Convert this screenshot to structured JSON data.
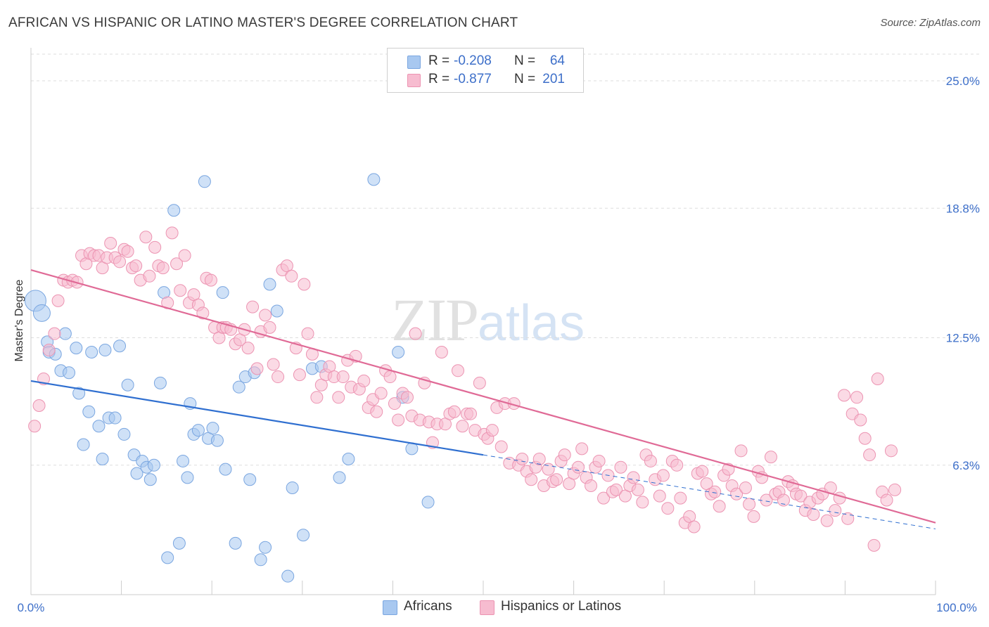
{
  "header": {
    "title": "AFRICAN VS HISPANIC OR LATINO MASTER'S DEGREE CORRELATION CHART",
    "source": "Source: ZipAtlas.com"
  },
  "watermark": {
    "zip": "ZIP",
    "atlas": "atlas"
  },
  "legend": {
    "rows": [
      {
        "r_label": "R =",
        "r_value": "-0.208",
        "n_label": "N =",
        "n_value": "64",
        "color": "#a8c8f0",
        "border": "#7aa6e0"
      },
      {
        "r_label": "R =",
        "r_value": "-0.877",
        "n_label": "N =",
        "n_value": "201",
        "color": "#f7bcd0",
        "border": "#ec94b2"
      }
    ]
  },
  "bottom_legend": [
    {
      "label": "Africans",
      "color": "#a8c8f0",
      "border": "#7aa6e0"
    },
    {
      "label": "Hispanics or Latinos",
      "color": "#f7bcd0",
      "border": "#ec94b2"
    }
  ],
  "chart_data": {
    "type": "scatter",
    "title": "AFRICAN VS HISPANIC OR LATINO MASTER'S DEGREE CORRELATION CHART",
    "xlabel": "",
    "ylabel": "Master's Degree",
    "xlim": [
      0,
      100
    ],
    "ylim": [
      0,
      26.3
    ],
    "x_tick_labels": [
      "0.0%",
      "100.0%"
    ],
    "y_ticks": [
      6.3,
      12.5,
      18.8,
      25.0
    ],
    "y_tick_labels": [
      "6.3%",
      "12.5%",
      "18.8%",
      "25.0%"
    ],
    "grid": "horizontal dashed",
    "legend_position": "top-center",
    "series": [
      {
        "name": "Africans",
        "color": "#a8c8f0",
        "stroke": "#7aa6e0",
        "line_color": "#2f6fd0",
        "trend": {
          "x0": 0,
          "y0": 10.4,
          "x1": 50,
          "y1": 6.8,
          "dash_to_x": 100,
          "dash_to_y": 3.2
        },
        "points": [
          [
            0.5,
            14.3
          ],
          [
            1.2,
            13.7
          ],
          [
            1.8,
            12.3
          ],
          [
            2.0,
            11.8
          ],
          [
            2.7,
            11.7
          ],
          [
            3.3,
            10.9
          ],
          [
            3.8,
            12.7
          ],
          [
            4.2,
            10.8
          ],
          [
            5.0,
            12.0
          ],
          [
            5.3,
            9.8
          ],
          [
            5.8,
            7.3
          ],
          [
            6.4,
            8.9
          ],
          [
            6.7,
            11.8
          ],
          [
            7.5,
            8.2
          ],
          [
            7.9,
            6.6
          ],
          [
            8.2,
            11.9
          ],
          [
            8.6,
            8.6
          ],
          [
            9.3,
            8.6
          ],
          [
            9.8,
            12.1
          ],
          [
            10.3,
            7.8
          ],
          [
            10.7,
            10.2
          ],
          [
            11.4,
            6.8
          ],
          [
            11.7,
            5.9
          ],
          [
            12.3,
            6.5
          ],
          [
            12.8,
            6.2
          ],
          [
            13.2,
            5.6
          ],
          [
            13.6,
            6.3
          ],
          [
            14.3,
            10.3
          ],
          [
            14.7,
            14.7
          ],
          [
            15.1,
            1.8
          ],
          [
            15.8,
            18.7
          ],
          [
            16.4,
            2.5
          ],
          [
            16.8,
            6.5
          ],
          [
            17.3,
            5.7
          ],
          [
            17.6,
            9.3
          ],
          [
            18.0,
            7.8
          ],
          [
            18.5,
            8.0
          ],
          [
            19.2,
            20.1
          ],
          [
            19.6,
            7.6
          ],
          [
            20.1,
            8.1
          ],
          [
            20.6,
            7.5
          ],
          [
            21.2,
            14.7
          ],
          [
            21.5,
            6.1
          ],
          [
            22.6,
            2.5
          ],
          [
            23.0,
            10.1
          ],
          [
            23.7,
            10.6
          ],
          [
            24.2,
            5.6
          ],
          [
            24.7,
            10.8
          ],
          [
            25.4,
            1.7
          ],
          [
            25.9,
            2.3
          ],
          [
            26.4,
            15.1
          ],
          [
            27.2,
            13.8
          ],
          [
            28.4,
            0.9
          ],
          [
            28.9,
            5.2
          ],
          [
            30.1,
            2.9
          ],
          [
            31.1,
            11.0
          ],
          [
            32.1,
            11.1
          ],
          [
            34.1,
            5.7
          ],
          [
            35.1,
            6.6
          ],
          [
            37.9,
            20.2
          ],
          [
            40.6,
            11.8
          ],
          [
            41.1,
            9.6
          ],
          [
            42.1,
            7.1
          ],
          [
            43.9,
            4.5
          ]
        ]
      },
      {
        "name": "Hispanics or Latinos",
        "color": "#f7bcd0",
        "stroke": "#ec94b2",
        "line_color": "#e06a96",
        "trend": {
          "x0": 0,
          "y0": 15.8,
          "x1": 100,
          "y1": 3.5
        },
        "points": [
          [
            0.4,
            8.2
          ],
          [
            0.9,
            9.2
          ],
          [
            1.4,
            10.5
          ],
          [
            2.0,
            11.9
          ],
          [
            2.6,
            12.7
          ],
          [
            3.0,
            14.3
          ],
          [
            3.6,
            15.3
          ],
          [
            4.1,
            15.2
          ],
          [
            4.6,
            15.3
          ],
          [
            5.1,
            15.2
          ],
          [
            5.6,
            16.5
          ],
          [
            6.1,
            16.1
          ],
          [
            6.5,
            16.6
          ],
          [
            7.0,
            16.5
          ],
          [
            7.5,
            16.5
          ],
          [
            7.9,
            15.9
          ],
          [
            8.4,
            16.4
          ],
          [
            8.8,
            17.1
          ],
          [
            9.3,
            16.4
          ],
          [
            9.8,
            16.2
          ],
          [
            10.3,
            16.8
          ],
          [
            10.7,
            16.7
          ],
          [
            11.2,
            15.9
          ],
          [
            11.6,
            16.0
          ],
          [
            12.1,
            15.3
          ],
          [
            12.7,
            17.4
          ],
          [
            13.1,
            15.5
          ],
          [
            13.7,
            16.9
          ],
          [
            14.1,
            16.0
          ],
          [
            14.6,
            15.9
          ],
          [
            15.1,
            14.2
          ],
          [
            15.6,
            17.6
          ],
          [
            16.1,
            16.1
          ],
          [
            16.5,
            14.8
          ],
          [
            17.0,
            16.5
          ],
          [
            17.5,
            14.2
          ],
          [
            18.0,
            14.6
          ],
          [
            18.5,
            14.1
          ],
          [
            19.0,
            13.7
          ],
          [
            19.4,
            15.4
          ],
          [
            19.9,
            15.3
          ],
          [
            20.3,
            13.0
          ],
          [
            20.8,
            12.5
          ],
          [
            21.2,
            13.0
          ],
          [
            21.6,
            13.0
          ],
          [
            22.1,
            12.9
          ],
          [
            22.6,
            12.2
          ],
          [
            23.1,
            12.4
          ],
          [
            23.6,
            12.9
          ],
          [
            24.0,
            12.0
          ],
          [
            24.5,
            14.0
          ],
          [
            25.0,
            11.0
          ],
          [
            25.4,
            12.8
          ],
          [
            25.9,
            13.6
          ],
          [
            26.4,
            13.0
          ],
          [
            26.8,
            11.2
          ],
          [
            27.3,
            10.6
          ],
          [
            27.8,
            15.8
          ],
          [
            28.3,
            16.0
          ],
          [
            28.8,
            15.5
          ],
          [
            29.3,
            12.0
          ],
          [
            29.7,
            10.7
          ],
          [
            30.2,
            15.1
          ],
          [
            30.6,
            12.7
          ],
          [
            31.1,
            11.7
          ],
          [
            31.6,
            9.6
          ],
          [
            32.1,
            10.2
          ],
          [
            32.6,
            10.7
          ],
          [
            33.0,
            11.1
          ],
          [
            33.5,
            10.6
          ],
          [
            34.0,
            9.6
          ],
          [
            34.5,
            10.6
          ],
          [
            35.0,
            11.4
          ],
          [
            35.4,
            10.1
          ],
          [
            35.9,
            11.6
          ],
          [
            36.3,
            10.0
          ],
          [
            36.8,
            10.4
          ],
          [
            37.3,
            9.1
          ],
          [
            37.8,
            9.5
          ],
          [
            38.2,
            8.9
          ],
          [
            38.7,
            9.8
          ],
          [
            39.2,
            10.9
          ],
          [
            39.7,
            10.6
          ],
          [
            40.2,
            9.3
          ],
          [
            40.6,
            8.5
          ],
          [
            41.1,
            9.8
          ],
          [
            41.6,
            9.6
          ],
          [
            42.1,
            8.7
          ],
          [
            42.5,
            12.7
          ],
          [
            43.0,
            8.5
          ],
          [
            43.5,
            10.3
          ],
          [
            44.0,
            8.4
          ],
          [
            44.4,
            7.4
          ],
          [
            44.9,
            8.3
          ],
          [
            45.4,
            11.8
          ],
          [
            45.8,
            8.3
          ],
          [
            46.3,
            8.8
          ],
          [
            46.8,
            8.9
          ],
          [
            47.2,
            10.9
          ],
          [
            47.7,
            8.2
          ],
          [
            48.2,
            8.8
          ],
          [
            48.6,
            8.8
          ],
          [
            49.1,
            8.0
          ],
          [
            49.6,
            10.3
          ],
          [
            50.1,
            7.8
          ],
          [
            50.5,
            7.6
          ],
          [
            51.0,
            8.0
          ],
          [
            51.5,
            9.1
          ],
          [
            52.0,
            7.2
          ],
          [
            52.4,
            9.3
          ],
          [
            52.9,
            6.4
          ],
          [
            53.4,
            9.3
          ],
          [
            53.9,
            6.3
          ],
          [
            54.3,
            6.6
          ],
          [
            54.8,
            6.0
          ],
          [
            55.3,
            5.6
          ],
          [
            55.8,
            6.2
          ],
          [
            56.2,
            6.6
          ],
          [
            56.7,
            5.3
          ],
          [
            57.2,
            6.1
          ],
          [
            57.7,
            5.5
          ],
          [
            58.1,
            5.6
          ],
          [
            58.6,
            6.5
          ],
          [
            59.0,
            6.8
          ],
          [
            59.5,
            5.4
          ],
          [
            60.0,
            5.9
          ],
          [
            60.5,
            6.2
          ],
          [
            60.9,
            7.1
          ],
          [
            61.4,
            5.7
          ],
          [
            61.9,
            5.3
          ],
          [
            62.4,
            6.2
          ],
          [
            62.8,
            6.5
          ],
          [
            63.3,
            4.7
          ],
          [
            63.8,
            5.8
          ],
          [
            64.3,
            5.0
          ],
          [
            64.7,
            5.1
          ],
          [
            65.2,
            6.2
          ],
          [
            65.7,
            4.8
          ],
          [
            66.2,
            5.3
          ],
          [
            66.6,
            5.7
          ],
          [
            67.1,
            5.1
          ],
          [
            67.6,
            4.5
          ],
          [
            68.0,
            6.8
          ],
          [
            68.5,
            6.5
          ],
          [
            69.0,
            5.6
          ],
          [
            69.5,
            4.8
          ],
          [
            69.9,
            5.8
          ],
          [
            70.4,
            4.2
          ],
          [
            70.9,
            6.5
          ],
          [
            71.4,
            6.3
          ],
          [
            71.8,
            4.7
          ],
          [
            72.3,
            3.5
          ],
          [
            72.8,
            3.8
          ],
          [
            73.3,
            3.3
          ],
          [
            73.7,
            5.9
          ],
          [
            74.2,
            6.0
          ],
          [
            74.7,
            5.4
          ],
          [
            75.2,
            4.9
          ],
          [
            75.6,
            5.0
          ],
          [
            76.1,
            4.3
          ],
          [
            76.6,
            5.8
          ],
          [
            77.1,
            6.1
          ],
          [
            77.5,
            5.3
          ],
          [
            78.0,
            4.9
          ],
          [
            78.5,
            7.0
          ],
          [
            79.0,
            5.2
          ],
          [
            79.4,
            4.4
          ],
          [
            79.9,
            3.8
          ],
          [
            80.4,
            6.0
          ],
          [
            80.8,
            5.7
          ],
          [
            81.3,
            4.6
          ],
          [
            81.8,
            6.7
          ],
          [
            82.3,
            4.9
          ],
          [
            82.7,
            5.0
          ],
          [
            83.2,
            4.6
          ],
          [
            83.7,
            5.5
          ],
          [
            84.2,
            5.3
          ],
          [
            84.6,
            4.9
          ],
          [
            85.1,
            4.8
          ],
          [
            85.6,
            4.1
          ],
          [
            86.1,
            4.5
          ],
          [
            86.5,
            3.9
          ],
          [
            87.0,
            4.7
          ],
          [
            87.5,
            4.9
          ],
          [
            88.0,
            3.6
          ],
          [
            88.4,
            5.2
          ],
          [
            88.9,
            4.1
          ],
          [
            89.4,
            4.7
          ],
          [
            89.9,
            9.7
          ],
          [
            90.3,
            3.7
          ],
          [
            90.8,
            8.8
          ],
          [
            91.3,
            9.6
          ],
          [
            91.7,
            8.5
          ],
          [
            92.2,
            7.6
          ],
          [
            92.7,
            6.8
          ],
          [
            93.2,
            2.4
          ],
          [
            93.6,
            10.5
          ],
          [
            94.1,
            5.0
          ],
          [
            94.6,
            4.6
          ],
          [
            95.1,
            7.0
          ],
          [
            95.5,
            5.1
          ]
        ]
      }
    ]
  }
}
